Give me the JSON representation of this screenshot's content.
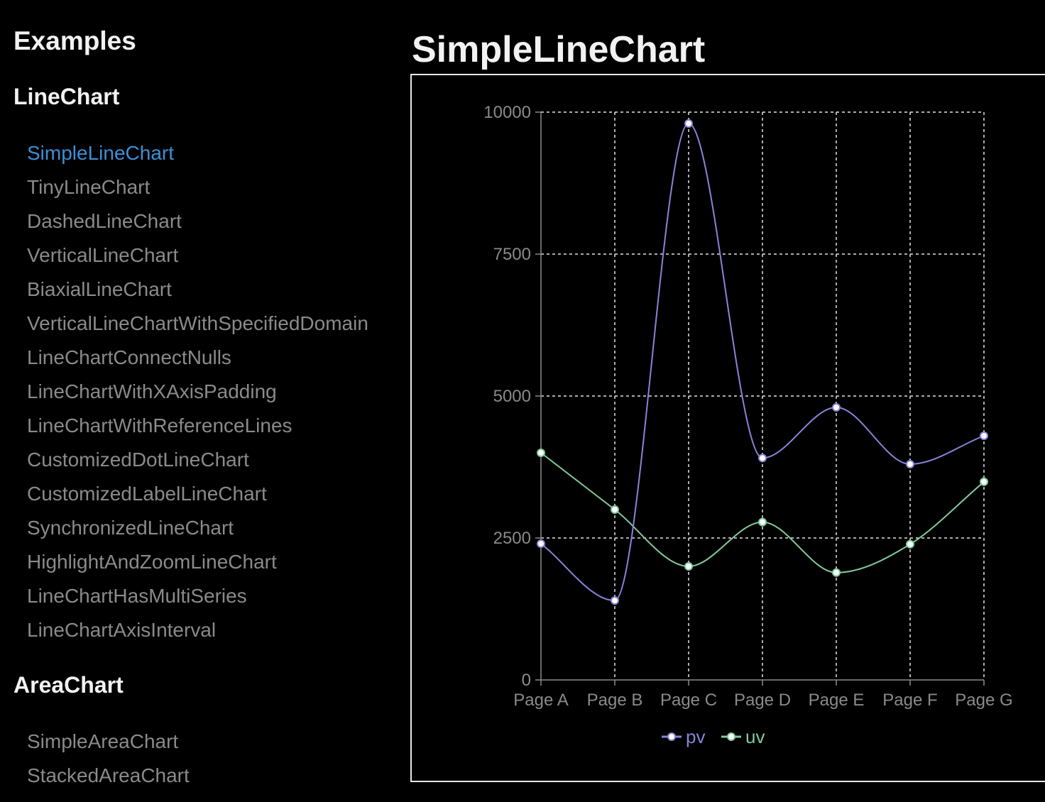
{
  "sidebar": {
    "title": "Examples",
    "sections": [
      {
        "heading": "LineChart",
        "items": [
          {
            "label": "SimpleLineChart",
            "active": true
          },
          {
            "label": "TinyLineChart"
          },
          {
            "label": "DashedLineChart"
          },
          {
            "label": "VerticalLineChart"
          },
          {
            "label": "BiaxialLineChart"
          },
          {
            "label": "VerticalLineChartWithSpecifiedDomain"
          },
          {
            "label": "LineChartConnectNulls"
          },
          {
            "label": "LineChartWithXAxisPadding"
          },
          {
            "label": "LineChartWithReferenceLines"
          },
          {
            "label": "CustomizedDotLineChart"
          },
          {
            "label": "CustomizedLabelLineChart"
          },
          {
            "label": "SynchronizedLineChart"
          },
          {
            "label": "HighlightAndZoomLineChart"
          },
          {
            "label": "LineChartHasMultiSeries"
          },
          {
            "label": "LineChartAxisInterval"
          }
        ]
      },
      {
        "heading": "AreaChart",
        "items": [
          {
            "label": "SimpleAreaChart"
          },
          {
            "label": "StackedAreaChart"
          }
        ]
      }
    ]
  },
  "main": {
    "title": "SimpleLineChart"
  },
  "colors": {
    "active_link": "#3d8fd6",
    "pv": "#8884d8",
    "uv": "#82ca9d",
    "grid": "#e6e6e6",
    "axis": "#8a8a8a"
  },
  "chart_data": {
    "type": "line",
    "categories": [
      "Page A",
      "Page B",
      "Page C",
      "Page D",
      "Page E",
      "Page F",
      "Page G"
    ],
    "series": [
      {
        "name": "pv",
        "values": [
          2400,
          1398,
          9800,
          3908,
          4800,
          3800,
          4300
        ],
        "color": "#8884d8"
      },
      {
        "name": "uv",
        "values": [
          4000,
          3000,
          2000,
          2780,
          1890,
          2390,
          3490
        ],
        "color": "#82ca9d"
      }
    ],
    "y_ticks": [
      "0",
      "2500",
      "5000",
      "7500",
      "10000"
    ],
    "ylim": [
      0,
      10000
    ],
    "grid": "dashed",
    "legend_position": "bottom-center",
    "curve": "monotone"
  }
}
